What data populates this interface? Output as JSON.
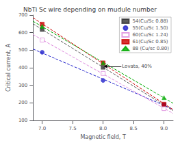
{
  "chart_data": {
    "type": "scatter",
    "title": "NbTi Sc wire depending on mudule number",
    "xlabel": "Magnetic field, T",
    "ylabel": "Critical current, A",
    "xlim": [
      6.85,
      9.15
    ],
    "ylim": [
      100,
      700
    ],
    "xticks": [
      {
        "value": 7.0,
        "label": "7.0"
      },
      7.5,
      {
        "value": 8.0,
        "label": "8.0"
      },
      8.5,
      {
        "value": 9.0,
        "label": "9.0"
      }
    ],
    "yticks": [
      100,
      200,
      300,
      400,
      500,
      600,
      700
    ],
    "grid": false,
    "legend": "upper right",
    "annotation": {
      "text": "Lovata, 40%",
      "xy": [
        8.02,
        408
      ],
      "xytext": [
        8.3,
        408
      ]
    },
    "series": [
      {
        "name": "54(Cu/Sc 0.88)",
        "color": "#333333",
        "marker": "square",
        "x": [
          7.0,
          8.0,
          9.0
        ],
        "values": [
          618,
          403,
          188
        ],
        "fit": {
          "x": [
            6.85,
            9.15
          ],
          "values": [
            650.25,
            155.75
          ],
          "color": "#555555",
          "line_style": "dashed"
        }
      },
      {
        "name": "55(Cu/Sc 1.50)",
        "color": "#2222cc",
        "marker": "circle",
        "x": [
          7.0,
          8.0,
          9.0
        ],
        "values": [
          488,
          328,
          190
        ],
        "fit": {
          "x": [
            6.85,
            9.15
          ],
          "values": [
            506.68333,
            163.98333
          ],
          "color": "#2222cc",
          "line_style": "dashed"
        }
      },
      {
        "name": "60(Cu/Sc 1.24)",
        "color": "#dd88dd",
        "marker": "open_square",
        "x": [
          7.0,
          8.0,
          9.0
        ],
        "values": [
          558,
          368,
          168
        ],
        "fit": {
          "x": [
            6.85,
            9.15
          ],
          "values": [
            588.91667,
            140.41667
          ],
          "color": "#dd88dd",
          "line_style": "dashed"
        }
      },
      {
        "name": "61(Cu/Sc 0.85)",
        "color": "#cc0000",
        "marker": "square",
        "x": [
          7.0,
          8.0,
          9.0
        ],
        "values": [
          648,
          428,
          193
        ],
        "fit": {
          "x": [
            6.85,
            9.15
          ],
          "values": [
            684.625,
            161.375
          ],
          "color": "#cc0000",
          "line_style": "dashed"
        }
      },
      {
        "name": "88 (Cu/sc 0.80)",
        "color": "#00aa00",
        "marker": "triangle",
        "x": [
          7.0,
          8.0,
          9.0
        ],
        "values": [
          636,
          428,
          230
        ],
        "fit": {
          "x": [
            6.85,
            9.15
          ],
          "values": [
            664.78333,
            197.88333
          ],
          "color": "#00aa00",
          "line_style": "dashed"
        }
      }
    ]
  }
}
